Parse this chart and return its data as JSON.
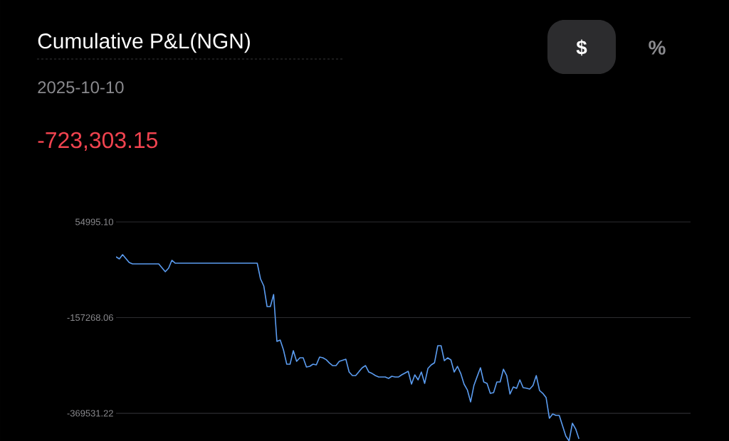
{
  "chart_data": {
    "type": "line",
    "title": "Cumulative P&L(NGN)",
    "subtitle": "2025-10-10",
    "annotations": [
      "-723,303.15",
      "$",
      "%"
    ],
    "categories": [
      null,
      null,
      null,
      null,
      null,
      null,
      null,
      null,
      null,
      null,
      null,
      null,
      null,
      null,
      null,
      null,
      null,
      null,
      null,
      null,
      null,
      null,
      null,
      null,
      null,
      null,
      null,
      null,
      null,
      null,
      null,
      null,
      null,
      null,
      null,
      null,
      null,
      null,
      null,
      null,
      null,
      null,
      null,
      null,
      null,
      null,
      null,
      null,
      null,
      null,
      null,
      null,
      null,
      null,
      null,
      null,
      null,
      null,
      null,
      null,
      null,
      null,
      null,
      null,
      null,
      null,
      null,
      null,
      null,
      null,
      null,
      null,
      null,
      null,
      null,
      null,
      null,
      null,
      null,
      null,
      null,
      null,
      null,
      null,
      null,
      null,
      null,
      null,
      null,
      null,
      null,
      null,
      null,
      null,
      null,
      null,
      null,
      null,
      null,
      null,
      null,
      null,
      null,
      null,
      null,
      null,
      null,
      null,
      null,
      null,
      null,
      null,
      null,
      null,
      null,
      null,
      null,
      null,
      null,
      null,
      null,
      null,
      null,
      null,
      null,
      null,
      null,
      null,
      null,
      null,
      null,
      null,
      null,
      null,
      null,
      null,
      null,
      null,
      null,
      null,
      null,
      null,
      null,
      null,
      null,
      null,
      null,
      null,
      null,
      null,
      null,
      null,
      null,
      null,
      null,
      null,
      null,
      null,
      null,
      null,
      null,
      null,
      null,
      null,
      null,
      null,
      null,
      null,
      null,
      null,
      null,
      null,
      null,
      null,
      null,
      null
    ],
    "series": [
      {
        "color": "#5b9cf0",
        "values": [
          -22300,
          -27100,
          -17600,
          -26300,
          -35000,
          -38100,
          -38100,
          -38100,
          -38100,
          -38100,
          -38100,
          -38100,
          -38100,
          -38100,
          -46800,
          -55500,
          -47600,
          -30200,
          -36500,
          -36500,
          -36500,
          -36500,
          -36500,
          -36500,
          -36500,
          -36500,
          -36500,
          -36500,
          -36500,
          -36500,
          -36500,
          -36500,
          -36500,
          -36500,
          -36500,
          -36500,
          -36500,
          -36500,
          -36500,
          -36500,
          -36500,
          -36500,
          -36500,
          -36500,
          -71300,
          -87000,
          -132800,
          -132800,
          -106000,
          -210100,
          -207000,
          -229100,
          -260600,
          -260600,
          -230700,
          -254300,
          -246400,
          -246400,
          -267000,
          -265400,
          -260600,
          -262200,
          -244900,
          -246400,
          -250600,
          -258000,
          -263800,
          -263800,
          -254300,
          -252000,
          -249600,
          -278000,
          -285900,
          -285900,
          -277000,
          -268500,
          -263800,
          -278000,
          -281200,
          -285900,
          -289100,
          -289100,
          -289100,
          -292200,
          -287500,
          -289100,
          -289100,
          -284300,
          -280300,
          -276400,
          -304800,
          -284300,
          -295400,
          -278000,
          -303300,
          -270100,
          -262200,
          -257500,
          -219600,
          -219600,
          -252800,
          -246400,
          -251200,
          -278000,
          -265400,
          -281200,
          -304800,
          -317500,
          -344300,
          -308000,
          -288000,
          -268500,
          -300100,
          -303300,
          -325400,
          -323800,
          -300100,
          -300100,
          -271700,
          -285900,
          -326900,
          -311100,
          -314300,
          -295400,
          -312700,
          -314000,
          -315900,
          -308000,
          -285900,
          -319000,
          -325400,
          -334800,
          -380600,
          -371100,
          -374300,
          -374300,
          -397000,
          -420000,
          -431000,
          -391600,
          -404300,
          -426400,
          null,
          null,
          null,
          null,
          null,
          null,
          null,
          null,
          null,
          null,
          null,
          null,
          null,
          null,
          null,
          null,
          null,
          null,
          null,
          null,
          null,
          null,
          null,
          null,
          null,
          null,
          null,
          null,
          null,
          null,
          null,
          null,
          null,
          null
        ]
      }
    ],
    "ylim": [
      -431000,
      54995.1
    ],
    "yticks": [
      {
        "value": 54995.1,
        "label": "54995.10"
      },
      {
        "value": -157268.06,
        "label": "-157268.06"
      },
      {
        "value": -369531.22,
        "label": "-369531.22"
      }
    ],
    "grid": "y",
    "tick_labels": "y"
  }
}
